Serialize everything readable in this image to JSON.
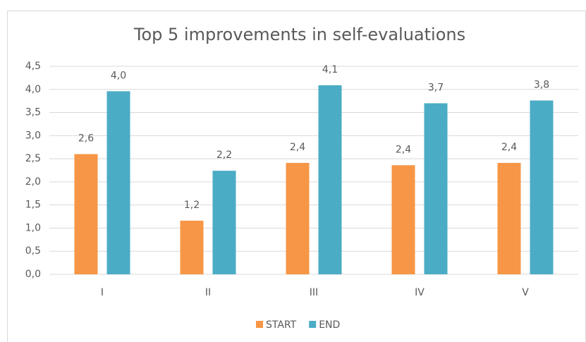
{
  "chart_data": {
    "type": "bar",
    "title": "Top 5 improvements in self-evaluations",
    "categories": [
      "I",
      "II",
      "III",
      "IV",
      "V"
    ],
    "series": [
      {
        "name": "START",
        "color": "#f79646",
        "values": [
          2.6,
          1.16,
          2.41,
          2.36,
          2.41
        ],
        "value_labels": [
          "2,6",
          "1,2",
          "2,4",
          "2,4",
          "2,4"
        ]
      },
      {
        "name": "END",
        "color": "#4bacc6",
        "values": [
          3.96,
          2.24,
          4.09,
          3.7,
          3.76
        ],
        "value_labels": [
          "4,0",
          "2,2",
          "4,1",
          "3,7",
          "3,8"
        ]
      }
    ],
    "ylim": [
      0,
      4.5
    ],
    "yticks": [
      {
        "value": 0,
        "label": "0,0"
      },
      {
        "value": 0.5,
        "label": "0,5"
      },
      {
        "value": 1,
        "label": "1,0"
      },
      {
        "value": 1.5,
        "label": "1,5"
      },
      {
        "value": 2,
        "label": "2,0"
      },
      {
        "value": 2.5,
        "label": "2,5"
      },
      {
        "value": 3,
        "label": "3,0"
      },
      {
        "value": 3.5,
        "label": "3,5"
      },
      {
        "value": 4,
        "label": "4,0"
      },
      {
        "value": 4.5,
        "label": "4,5"
      }
    ],
    "grid": true,
    "legend": "bottom"
  }
}
